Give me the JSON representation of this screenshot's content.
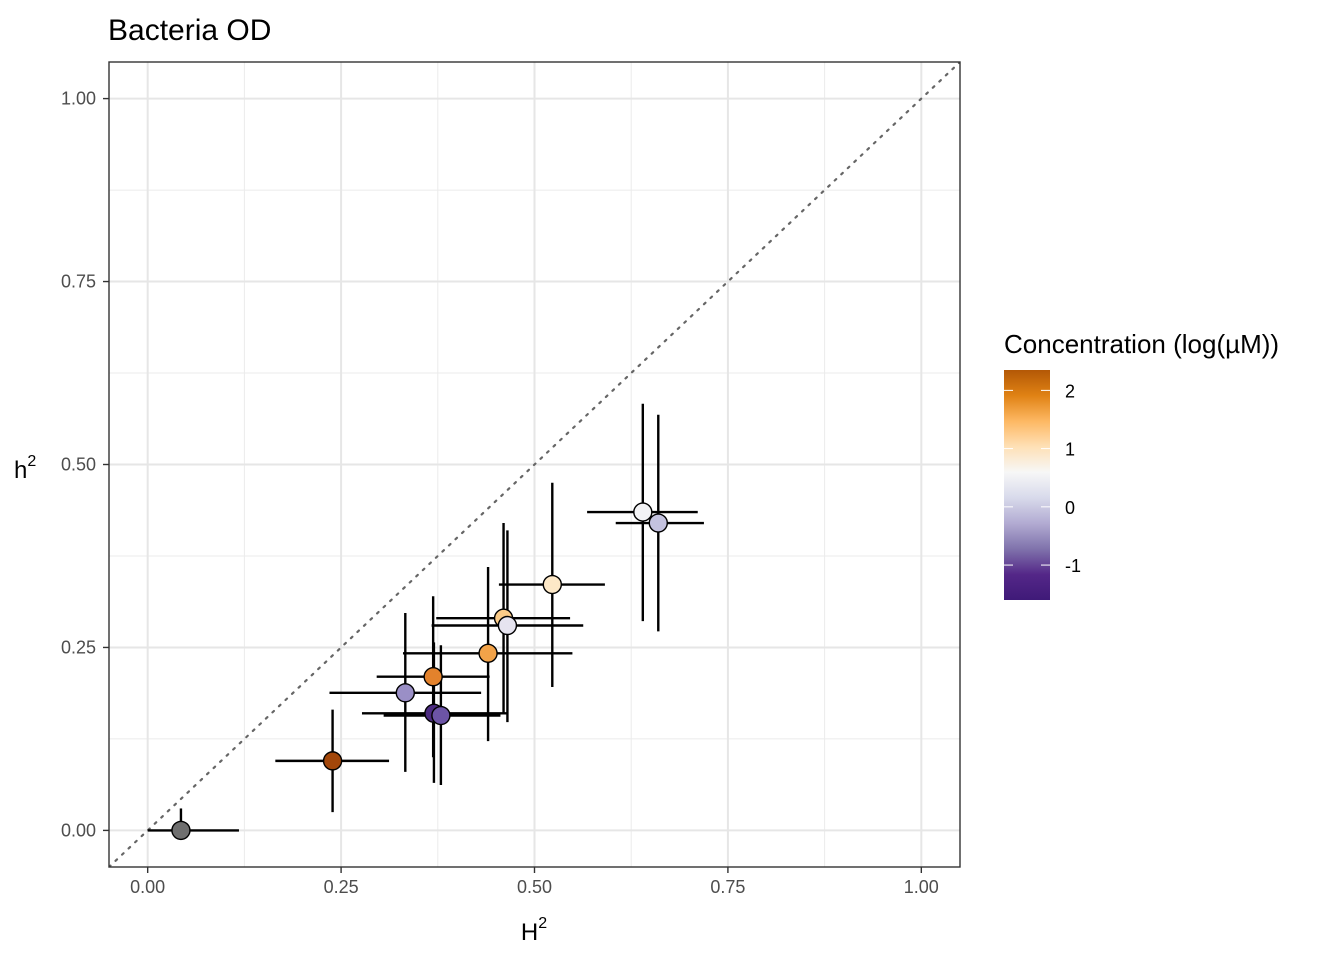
{
  "chart_data": {
    "type": "scatter",
    "title": "Bacteria OD",
    "xlabel": {
      "base": "H",
      "sup": "2"
    },
    "ylabel": {
      "base": "h",
      "sup": "2"
    },
    "xlim": [
      -0.05,
      1.05
    ],
    "ylim": [
      -0.05,
      1.05
    ],
    "x_ticks": [
      0.0,
      0.25,
      0.5,
      0.75,
      1.0
    ],
    "x_tick_labels": [
      "0.00",
      "0.25",
      "0.50",
      "0.75",
      "1.00"
    ],
    "y_ticks": [
      0.0,
      0.25,
      0.5,
      0.75,
      1.0
    ],
    "y_tick_labels": [
      "0.00",
      "0.25",
      "0.50",
      "0.75",
      "1.00"
    ],
    "grid": true,
    "reference_line": {
      "slope": 1,
      "intercept": 0,
      "style": "dotted",
      "color": "#666666"
    },
    "colorbar": {
      "title": "Concentration (log(µM))",
      "min": -1.6,
      "max": 2.35,
      "ticks": [
        2,
        1,
        0,
        -1
      ],
      "tick_labels": [
        "2",
        "1",
        "0",
        "-1"
      ],
      "colors_top_to_bottom": [
        "#b35806",
        "#e08214",
        "#fdb863",
        "#fee0b6",
        "#f7f7f7",
        "#d8daeb",
        "#b2abd2",
        "#8073ac",
        "#542788",
        "#3f1a78"
      ],
      "position": "right"
    },
    "points": [
      {
        "x": 0.043,
        "y": 0.0,
        "xmin": 0.0,
        "xmax": 0.118,
        "ymin": -0.01,
        "ymax": 0.03,
        "color": "#6f6f6f"
      },
      {
        "x": 0.239,
        "y": 0.095,
        "xmin": 0.165,
        "xmax": 0.312,
        "ymin": 0.025,
        "ymax": 0.165,
        "color": "#a3470a"
      },
      {
        "x": 0.333,
        "y": 0.188,
        "xmin": 0.235,
        "xmax": 0.431,
        "ymin": 0.08,
        "ymax": 0.297,
        "color": "#9a8fc6"
      },
      {
        "x": 0.369,
        "y": 0.21,
        "xmin": 0.296,
        "xmax": 0.442,
        "ymin": 0.1,
        "ymax": 0.32,
        "color": "#e3822c"
      },
      {
        "x": 0.37,
        "y": 0.16,
        "xmin": 0.277,
        "xmax": 0.464,
        "ymin": 0.065,
        "ymax": 0.257,
        "color": "#4b2a80"
      },
      {
        "x": 0.379,
        "y": 0.157,
        "xmin": 0.305,
        "xmax": 0.456,
        "ymin": 0.062,
        "ymax": 0.253,
        "color": "#6c54a6"
      },
      {
        "x": 0.44,
        "y": 0.242,
        "xmin": 0.33,
        "xmax": 0.549,
        "ymin": 0.122,
        "ymax": 0.36,
        "color": "#f2a349"
      },
      {
        "x": 0.46,
        "y": 0.29,
        "xmin": 0.373,
        "xmax": 0.546,
        "ymin": 0.16,
        "ymax": 0.42,
        "color": "#fbcb88"
      },
      {
        "x": 0.465,
        "y": 0.28,
        "xmin": 0.367,
        "xmax": 0.563,
        "ymin": 0.148,
        "ymax": 0.41,
        "color": "#e6e4f0"
      },
      {
        "x": 0.523,
        "y": 0.336,
        "xmin": 0.454,
        "xmax": 0.591,
        "ymin": 0.196,
        "ymax": 0.475,
        "color": "#fde8c7"
      },
      {
        "x": 0.64,
        "y": 0.435,
        "xmin": 0.568,
        "xmax": 0.711,
        "ymin": 0.286,
        "ymax": 0.583,
        "color": "#f3f3f5"
      },
      {
        "x": 0.66,
        "y": 0.42,
        "xmin": 0.605,
        "xmax": 0.719,
        "ymin": 0.272,
        "ymax": 0.568,
        "color": "#c4c2df"
      }
    ]
  }
}
